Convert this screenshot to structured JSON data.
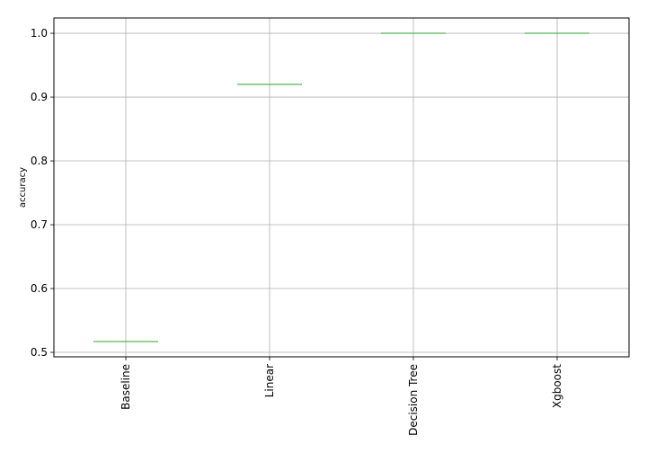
{
  "chart_data": {
    "type": "box",
    "categories": [
      "Baseline",
      "Linear",
      "Decision Tree",
      "Xgboost"
    ],
    "values": [
      0.517,
      0.92,
      1.0,
      1.0
    ],
    "ylabel": "accuracy",
    "ylim": [
      0.493,
      1.024
    ],
    "yticks": [
      "0.5",
      "0.6",
      "0.7",
      "0.8",
      "0.9",
      "1.0"
    ],
    "grid": true,
    "x_tick_rotation": "vertical",
    "median_color": "#2ca02c",
    "grid_color": "#b0b0b0"
  }
}
